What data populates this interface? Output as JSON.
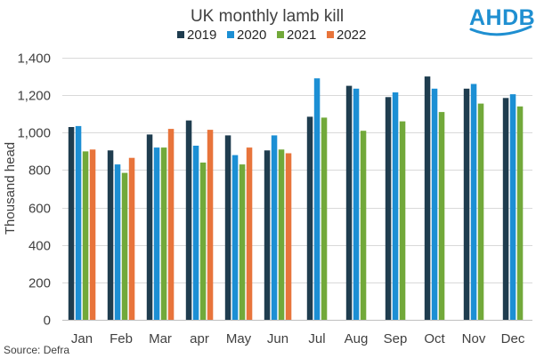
{
  "chart_data": {
    "type": "bar",
    "title": "UK monthly lamb kill",
    "ylabel": "Thousand head",
    "xlabel": "",
    "ylim": [
      0,
      1400
    ],
    "yticks": [
      0,
      200,
      400,
      600,
      800,
      1000,
      1200,
      1400
    ],
    "ytick_labels": [
      "0",
      "200",
      "400",
      "600",
      "800",
      "1,000",
      "1,200",
      "1,400"
    ],
    "grid": true,
    "legend_position": "top",
    "categories": [
      "Jan",
      "Feb",
      "Mar",
      "apr",
      "May",
      "Jun",
      "Jul",
      "Aug",
      "Sep",
      "Oct",
      "Nov",
      "Dec"
    ],
    "series": [
      {
        "name": "2019",
        "color": "#1f3d4f",
        "values": [
          1030,
          905,
          990,
          1065,
          985,
          905,
          1085,
          1250,
          1190,
          1300,
          1235,
          1185
        ]
      },
      {
        "name": "2020",
        "color": "#1c8fd4",
        "values": [
          1035,
          830,
          920,
          930,
          880,
          985,
          1290,
          1235,
          1215,
          1235,
          1260,
          1205
        ]
      },
      {
        "name": "2021",
        "color": "#72a93a",
        "values": [
          900,
          785,
          920,
          840,
          830,
          910,
          1080,
          1010,
          1060,
          1110,
          1155,
          1140
        ]
      },
      {
        "name": "2022",
        "color": "#e8743b",
        "values": [
          910,
          865,
          1020,
          1015,
          920,
          890,
          null,
          null,
          null,
          null,
          null,
          null
        ]
      }
    ]
  },
  "source_text": "Source: Defra",
  "logo": {
    "text": "AHDB",
    "color": "#1f8fd1"
  }
}
